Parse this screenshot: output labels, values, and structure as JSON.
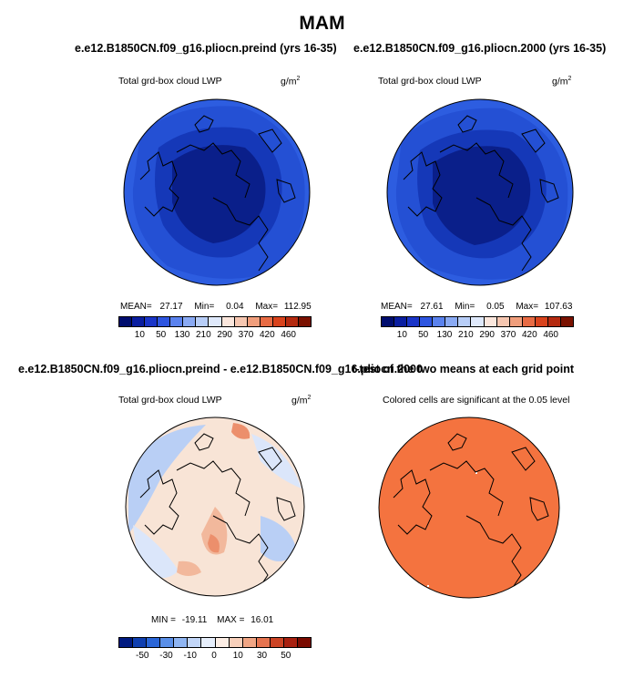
{
  "title": "MAM",
  "panels": [
    {
      "case_title": "e.e12.B1850CN.f09_g16.pliocn.preind (yrs 16-35)",
      "variable": "Total grd-box cloud LWP",
      "units_base": "g/m",
      "units_exp": "2",
      "stats": {
        "mean_label": "MEAN=",
        "mean": "27.17",
        "min_label": "Min=",
        "min": "0.04",
        "max_label": "Max=",
        "max": "112.95"
      },
      "colorbar": {
        "colors": [
          "#000d6e",
          "#0a1ea0",
          "#1a35c8",
          "#2d55e0",
          "#5a82ee",
          "#8aaaf4",
          "#b8cef8",
          "#dfe9fb",
          "#fbe7dd",
          "#f6c7b1",
          "#f09e7c",
          "#e86b44",
          "#d9431d",
          "#b52a10",
          "#7a1100"
        ],
        "labels": [
          "10",
          "50",
          "130",
          "210",
          "290",
          "370",
          "420",
          "460"
        ]
      }
    },
    {
      "case_title": "e.e12.B1850CN.f09_g16.pliocn.2000 (yrs 16-35)",
      "variable": "Total grd-box cloud LWP",
      "units_base": "g/m",
      "units_exp": "2",
      "stats": {
        "mean_label": "MEAN=",
        "mean": "27.61",
        "min_label": "Min=",
        "min": "0.05",
        "max_label": "Max=",
        "max": "107.63"
      },
      "colorbar": {
        "colors": [
          "#000d6e",
          "#0a1ea0",
          "#1a35c8",
          "#2d55e0",
          "#5a82ee",
          "#8aaaf4",
          "#b8cef8",
          "#dfe9fb",
          "#fbe7dd",
          "#f6c7b1",
          "#f09e7c",
          "#e86b44",
          "#d9431d",
          "#b52a10",
          "#7a1100"
        ],
        "labels": [
          "10",
          "50",
          "130",
          "210",
          "290",
          "370",
          "420",
          "460"
        ]
      }
    },
    {
      "case_title": "e.e12.B1850CN.f09_g16.pliocn.preind - e.e12.B1850CN.f09_g16.pliocn.2000",
      "variable": "Total grd-box cloud LWP",
      "units_base": "g/m",
      "units_exp": "2",
      "stats": {
        "min_label": "MIN =",
        "min": "-19.11",
        "max_label": "MAX =",
        "max": "16.01"
      },
      "colorbar": {
        "colors": [
          "#001a80",
          "#0f3fb0",
          "#2a66d8",
          "#5a8fe8",
          "#8fb5f2",
          "#c2d6f8",
          "#e6eefb",
          "#fdeee5",
          "#f8d0bb",
          "#f0a584",
          "#e5734f",
          "#cc4425",
          "#a82010",
          "#7a0a00"
        ],
        "labels": [
          "-50",
          "-30",
          "-10",
          "0",
          "10",
          "30",
          "50"
        ]
      }
    },
    {
      "case_title": "t-test of the two means at each grid point",
      "variable": "Colored cells are significant at the 0.05 level"
    }
  ],
  "map_colors": {
    "deep": "#0a1f8a",
    "mid": "#1538b8",
    "outer": "#2450d4",
    "edge": "#2d5de0",
    "diff_bg": "#f8e4d6",
    "diff_blue": "#b9cff5",
    "diff_blue_light": "#dbe6fa",
    "diff_red": "#f2b89c",
    "diff_red_strong": "#ec8f6c",
    "ttest": "#f4733f"
  }
}
